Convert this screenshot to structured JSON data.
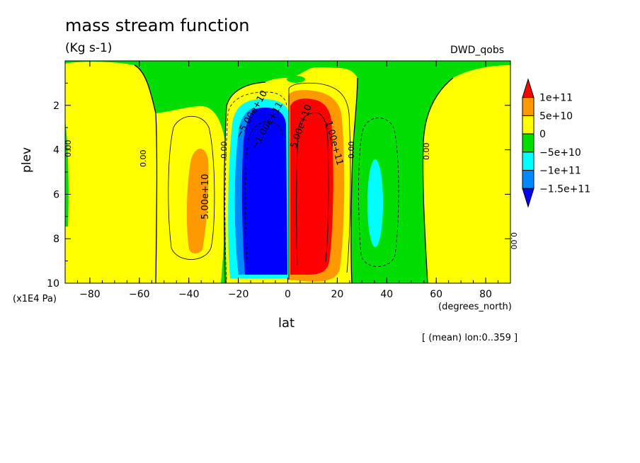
{
  "chart_data": {
    "type": "contour",
    "title": "mass stream function",
    "units": "(Kg s-1)",
    "dataset": "DWD_qobs",
    "xlabel": "lat",
    "xunit": "(degrees_north)",
    "ylabel": "plev",
    "yunit": "(x1E4 Pa)",
    "footer": "[ (mean) lon:0..359 ]",
    "xlim": [
      -90,
      90
    ],
    "ylim": [
      10,
      0
    ],
    "x_ticks": [
      -80,
      -60,
      -40,
      -20,
      0,
      20,
      40,
      60,
      80
    ],
    "x_tick_labels": [
      "−80",
      "−60",
      "−40",
      "−20",
      "0",
      "20",
      "40",
      "60",
      "80"
    ],
    "y_ticks": [
      2,
      4,
      6,
      8,
      10
    ],
    "y_tick_labels": [
      "2",
      "4",
      "6",
      "8",
      "10"
    ],
    "colorbar": {
      "levels": [
        "1e+11",
        "5e+10",
        "0",
        "−5e+10",
        "−1e+11",
        "−1.5e+11"
      ],
      "colors": [
        "#ff0000",
        "#ff9900",
        "#ffff00",
        "#00dd00",
        "#00ffff",
        "#0088ff",
        "#0000ff"
      ]
    },
    "contour_labels": [
      "5.00e+10",
      "−5.00e+10",
      "−1.00e+11",
      "5.00e+10",
      "1.00e+11",
      "0.00",
      "0.00",
      "0.00",
      "0.00",
      "0.00",
      "0.00"
    ],
    "features": [
      {
        "name": "NH Hadley cell",
        "lat_range": [
          1,
          18
        ],
        "plev_range": [
          1.3,
          9.7
        ],
        "max": ">1e+11"
      },
      {
        "name": "SH Hadley cell",
        "lat_range": [
          -24,
          -1
        ],
        "plev_range": [
          1.3,
          9.7
        ],
        "min": "<-1.5e+11"
      },
      {
        "name": "SH Ferrel cell",
        "lat_range": [
          -47,
          -27
        ],
        "plev_range": [
          2.0,
          9.2
        ],
        "max": "5e+10"
      },
      {
        "name": "NH Ferrel cell",
        "lat_range": [
          27,
          47
        ],
        "plev_range": [
          2.5,
          9.2
        ],
        "min": "-1e+11"
      }
    ]
  }
}
